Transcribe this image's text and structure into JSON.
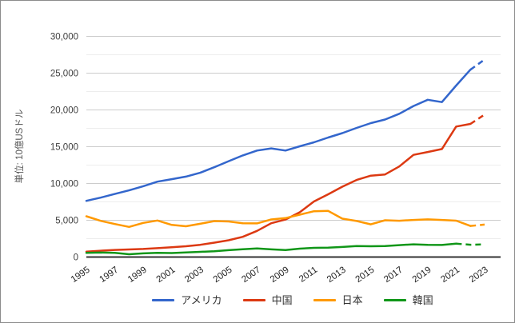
{
  "chart_data": {
    "type": "line",
    "title": "",
    "ylabel": "単位: 10億USドル",
    "xlabel": "",
    "ylim": [
      0,
      30000
    ],
    "y_major_step": 5000,
    "y_minor_step": 2500,
    "grid": true,
    "legend_position": "bottom",
    "estimate_style": "dashed",
    "colors": {
      "grid_major": "#cccccc",
      "grid_minor": "#ededed",
      "axis_line": "#333333",
      "usa": "#3366cc",
      "china": "#dc3912",
      "japan": "#ff9900",
      "korea": "#109618"
    },
    "y_ticks": [
      {
        "value": 0,
        "label": "0"
      },
      {
        "value": 5000,
        "label": "5,000"
      },
      {
        "value": 10000,
        "label": "10,000"
      },
      {
        "value": 15000,
        "label": "15,000"
      },
      {
        "value": 20000,
        "label": "20,000"
      },
      {
        "value": 25000,
        "label": "25,000"
      },
      {
        "value": 30000,
        "label": "30,000"
      }
    ],
    "x_ticks": [
      {
        "value": 1995,
        "label": "1995"
      },
      {
        "value": 1997,
        "label": "1997"
      },
      {
        "value": 1999,
        "label": "1999"
      },
      {
        "value": 2001,
        "label": "2001"
      },
      {
        "value": 2003,
        "label": "2003"
      },
      {
        "value": 2005,
        "label": "2005"
      },
      {
        "value": 2007,
        "label": "2007"
      },
      {
        "value": 2009,
        "label": "2009"
      },
      {
        "value": 2011,
        "label": "2011"
      },
      {
        "value": 2013,
        "label": "2013"
      },
      {
        "value": 2015,
        "label": "2015"
      },
      {
        "value": 2017,
        "label": "2017"
      },
      {
        "value": 2019,
        "label": "2019"
      },
      {
        "value": 2021,
        "label": "2021"
      },
      {
        "value": 2023,
        "label": "2023"
      }
    ],
    "x": [
      1995,
      1996,
      1997,
      1998,
      1999,
      2000,
      2001,
      2002,
      2003,
      2004,
      2005,
      2006,
      2007,
      2008,
      2009,
      2010,
      2011,
      2012,
      2013,
      2014,
      2015,
      2016,
      2017,
      2018,
      2019,
      2020,
      2021,
      2022,
      2023
    ],
    "series": [
      {
        "key": "usa",
        "name": "アメリカ",
        "color": "#3366cc",
        "solid_until": 2022,
        "values": [
          7640,
          8073,
          8578,
          9063,
          9631,
          10251,
          10582,
          10936,
          11458,
          12214,
          13037,
          13816,
          14474,
          14770,
          14478,
          15049,
          15600,
          16254,
          16843,
          17551,
          18206,
          18695,
          19477,
          20533,
          21381,
          21060,
          23315,
          25464,
          26855
        ]
      },
      {
        "key": "china",
        "name": "中国",
        "color": "#dc3912",
        "solid_until": 2022,
        "values": [
          735,
          864,
          962,
          1029,
          1094,
          1211,
          1339,
          1471,
          1660,
          1955,
          2286,
          2752,
          3550,
          4594,
          5102,
          6087,
          7552,
          8532,
          9570,
          10476,
          11062,
          11233,
          12310,
          13895,
          14280,
          14688,
          17734,
          18100,
          19374
        ]
      },
      {
        "key": "japan",
        "name": "日本",
        "color": "#ff9900",
        "solid_until": 2022,
        "values": [
          5546,
          4923,
          4492,
          4098,
          4636,
          4968,
          4374,
          4183,
          4519,
          4893,
          4832,
          4601,
          4579,
          5106,
          5290,
          5759,
          6233,
          6272,
          5212,
          4897,
          4444,
          5004,
          4931,
          5041,
          5118,
          5048,
          4941,
          4231,
          4410
        ]
      },
      {
        "key": "korea",
        "name": "韓国",
        "color": "#109618",
        "solid_until": 2021,
        "values": [
          566,
          610,
          569,
          383,
          497,
          576,
          547,
          627,
          702,
          793,
          934,
          1053,
          1172,
          1047,
          944,
          1144,
          1253,
          1278,
          1370,
          1484,
          1466,
          1500,
          1624,
          1725,
          1651,
          1644,
          1811,
          1674,
          1722
        ]
      }
    ]
  }
}
